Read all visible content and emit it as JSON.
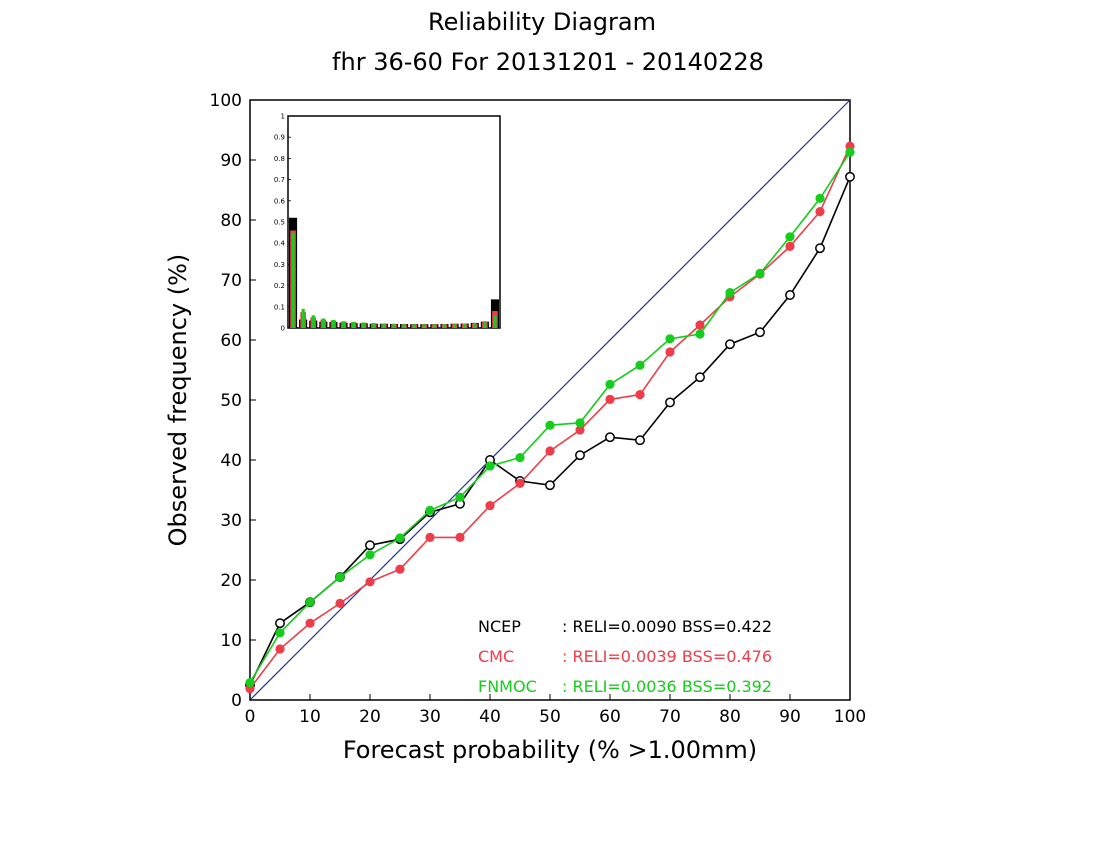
{
  "chart_data": {
    "type": "line",
    "title": "Reliability Diagram",
    "subtitle": "fhr 36-60 For 20131201 - 20140228",
    "xlabel": "Forecast probability (% >1.00mm)",
    "ylabel": "Observed frequency (%)",
    "xlim": [
      0,
      100
    ],
    "ylim": [
      0,
      100
    ],
    "x_ticks": [
      "0",
      "10",
      "20",
      "30",
      "40",
      "50",
      "60",
      "70",
      "80",
      "90",
      "100"
    ],
    "y_ticks": [
      "0",
      "10",
      "20",
      "30",
      "40",
      "50",
      "60",
      "70",
      "80",
      "90",
      "100"
    ],
    "x": [
      0,
      5,
      10,
      15,
      20,
      25,
      30,
      35,
      40,
      45,
      50,
      55,
      60,
      65,
      70,
      75,
      80,
      85,
      90,
      95,
      100
    ],
    "series": [
      {
        "name": "NCEP",
        "color": "#000000",
        "marker": "open-circle",
        "values": [
          2.5,
          12.8,
          16.3,
          20.5,
          25.8,
          26.8,
          31.3,
          32.7,
          40.0,
          36.5,
          35.8,
          40.8,
          43.8,
          43.3,
          49.6,
          53.8,
          59.3,
          61.3,
          67.5,
          75.3,
          87.2
        ],
        "stats": ": RELI=0.0090  BSS=0.422"
      },
      {
        "name": "CMC",
        "color": "#ee3d4a",
        "marker": "filled-circle",
        "values": [
          1.9,
          8.5,
          12.8,
          16.1,
          19.7,
          21.8,
          27.1,
          27.1,
          32.4,
          36.1,
          41.5,
          45.0,
          50.1,
          50.9,
          58.0,
          62.5,
          67.2,
          71.0,
          75.6,
          81.4,
          92.3
        ],
        "stats": ": RELI=0.0039  BSS=0.476"
      },
      {
        "name": "FNMOC",
        "color": "#16cc1c",
        "marker": "filled-circle",
        "values": [
          2.9,
          11.2,
          16.3,
          20.5,
          24.2,
          27.0,
          31.6,
          33.8,
          39.0,
          40.4,
          45.8,
          46.2,
          52.6,
          55.8,
          60.2,
          61.0,
          67.9,
          71.1,
          77.2,
          83.6,
          91.3
        ],
        "stats": ": RELI=0.0036  BSS=0.392"
      }
    ],
    "diagonal_color": "#2233aa",
    "legend_placement": "bottom-right",
    "inset": {
      "type": "bar",
      "description_hidden": true,
      "ylim": [
        0,
        1
      ],
      "y_ticks": [
        "0",
        "0.1",
        "0.2",
        "0.3",
        "0.4",
        "0.5",
        "0.6",
        "0.7",
        "0.8",
        "0.9",
        "1"
      ],
      "bins": [
        0,
        5,
        10,
        15,
        20,
        25,
        30,
        35,
        40,
        45,
        50,
        55,
        60,
        65,
        70,
        75,
        80,
        85,
        90,
        95,
        100
      ],
      "NCEP": [
        0.52,
        0.04,
        0.035,
        0.03,
        0.028,
        0.025,
        0.023,
        0.022,
        0.02,
        0.02,
        0.019,
        0.019,
        0.018,
        0.018,
        0.018,
        0.019,
        0.02,
        0.021,
        0.024,
        0.03,
        0.135
      ],
      "CMC": [
        0.46,
        0.075,
        0.05,
        0.04,
        0.035,
        0.03,
        0.027,
        0.025,
        0.022,
        0.02,
        0.019,
        0.018,
        0.017,
        0.017,
        0.017,
        0.018,
        0.019,
        0.02,
        0.022,
        0.028,
        0.08
      ],
      "FNMOC": [
        0.45,
        0.09,
        0.06,
        0.045,
        0.038,
        0.032,
        0.028,
        0.026,
        0.023,
        0.021,
        0.02,
        0.019,
        0.018,
        0.018,
        0.018,
        0.019,
        0.02,
        0.021,
        0.023,
        0.027,
        0.06
      ]
    }
  }
}
